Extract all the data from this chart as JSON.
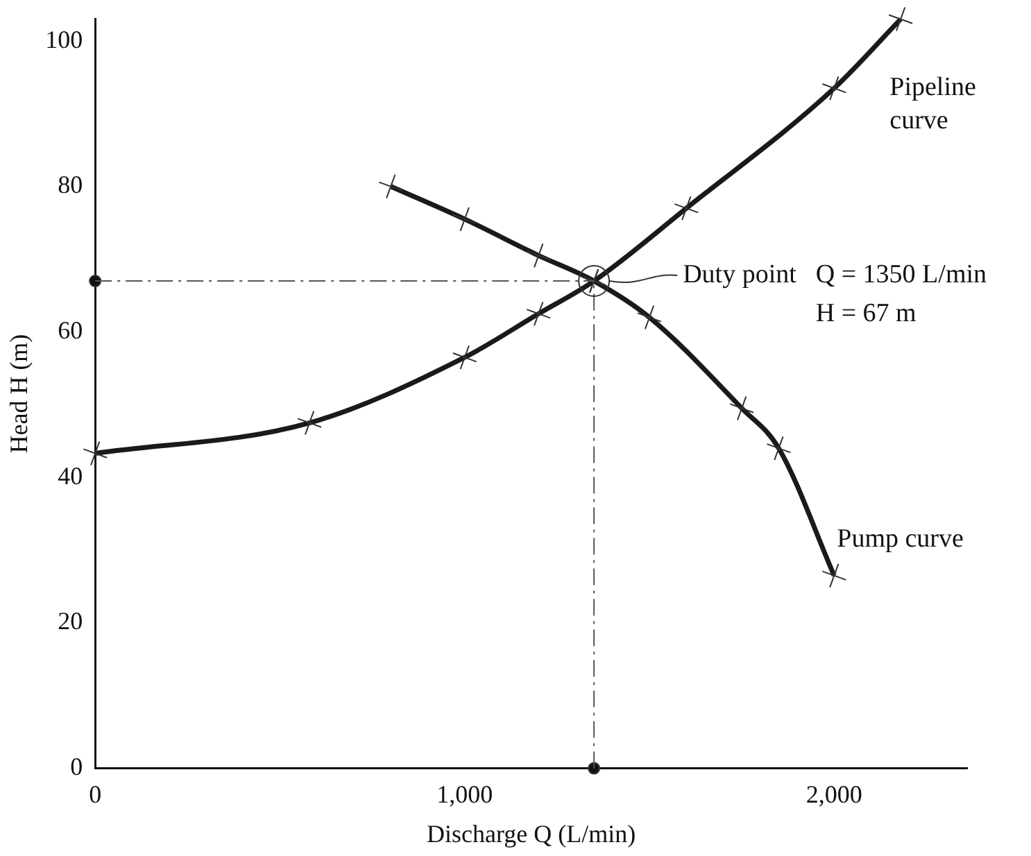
{
  "chart_data": {
    "type": "line",
    "xlabel": "Discharge Q (L/min)",
    "ylabel": "Head H (m)",
    "xlim": [
      0,
      2360
    ],
    "ylim": [
      0,
      103
    ],
    "xticks": [
      0,
      {
        "value": 1000,
        "label": "1,000"
      },
      {
        "value": 2000,
        "label": "2,000"
      }
    ],
    "yticks": [
      0,
      20,
      40,
      60,
      80,
      100
    ],
    "grid": false,
    "legend": false,
    "marker": "cross",
    "line_style": "solid",
    "series": [
      {
        "name": "Pipeline curve",
        "color": "#1a1a1a",
        "x": [
          0,
          580,
          1000,
          1200,
          1350,
          1600,
          2000,
          2180
        ],
        "values": [
          43.3,
          47.5,
          56.5,
          62.5,
          67,
          77,
          93.5,
          103
        ]
      },
      {
        "name": "Pump curve",
        "color": "#1a1a1a",
        "x": [
          800,
          1000,
          1200,
          1350,
          1500,
          1750,
          1850,
          2000
        ],
        "values": [
          80,
          75.5,
          70.5,
          67,
          62,
          49.5,
          44,
          26.5
        ]
      },
      {
        "type": "scatter",
        "marker": "circle",
        "color": "#111111",
        "x": [
          0,
          1350
        ],
        "values": [
          67,
          0
        ]
      }
    ],
    "ref_lines": [
      {
        "axis": "y",
        "value": 67,
        "color": "#555555",
        "line_style": "dashed"
      },
      {
        "axis": "x",
        "value": 1350,
        "color": "#555555",
        "line_style": "dashed"
      }
    ],
    "annotations": [
      "Duty point",
      "Q = 1350 L/min",
      "H = 67 m"
    ]
  }
}
